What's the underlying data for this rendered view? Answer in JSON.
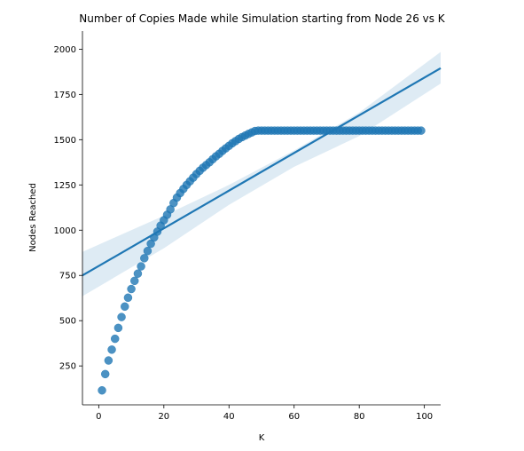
{
  "chart_data": {
    "type": "scatter",
    "title": "Number of Copies Made while Simulation starting from Node 26 vs K",
    "xlabel": "K",
    "ylabel": "Nodes Reached",
    "xlim": [
      -5,
      105
    ],
    "ylim": [
      35,
      2100
    ],
    "xticks": [
      0,
      20,
      40,
      60,
      80,
      100
    ],
    "yticks": [
      250,
      500,
      750,
      1000,
      1250,
      1500,
      1750,
      2000
    ],
    "grid": false,
    "color": "#1f77b4",
    "x": [
      1,
      2,
      3,
      4,
      5,
      6,
      7,
      8,
      9,
      10,
      11,
      12,
      13,
      14,
      15,
      16,
      17,
      18,
      19,
      20,
      21,
      22,
      23,
      24,
      25,
      26,
      27,
      28,
      29,
      30,
      31,
      32,
      33,
      34,
      35,
      36,
      37,
      38,
      39,
      40,
      41,
      42,
      43,
      44,
      45,
      46,
      47,
      48,
      49,
      50,
      51,
      52,
      53,
      54,
      55,
      56,
      57,
      58,
      59,
      60,
      61,
      62,
      63,
      64,
      65,
      66,
      67,
      68,
      69,
      70,
      71,
      72,
      73,
      74,
      75,
      76,
      77,
      78,
      79,
      80,
      81,
      82,
      83,
      84,
      85,
      86,
      87,
      88,
      89,
      90,
      91,
      92,
      93,
      94,
      95,
      96,
      97,
      98,
      99
    ],
    "y": [
      115,
      205,
      280,
      340,
      400,
      460,
      520,
      578,
      627,
      675,
      720,
      760,
      800,
      845,
      885,
      925,
      960,
      992,
      1025,
      1055,
      1085,
      1115,
      1150,
      1180,
      1205,
      1228,
      1250,
      1270,
      1290,
      1310,
      1328,
      1345,
      1360,
      1375,
      1392,
      1408,
      1422,
      1438,
      1452,
      1466,
      1480,
      1492,
      1504,
      1514,
      1523,
      1532,
      1540,
      1548,
      1550,
      1550,
      1550,
      1550,
      1550,
      1550,
      1550,
      1550,
      1550,
      1550,
      1550,
      1550,
      1550,
      1550,
      1550,
      1550,
      1550,
      1550,
      1550,
      1550,
      1550,
      1550,
      1550,
      1550,
      1550,
      1550,
      1550,
      1550,
      1550,
      1550,
      1550,
      1550,
      1550,
      1550,
      1550,
      1550,
      1550,
      1550,
      1550,
      1550,
      1550,
      1550,
      1550,
      1550,
      1550,
      1550,
      1550,
      1550,
      1550,
      1550,
      1550
    ],
    "regression": {
      "line": [
        [
          -5,
          750
        ],
        [
          105,
          1895
        ]
      ],
      "ci_upper": [
        [
          -5,
          880
        ],
        [
          20,
          1080
        ],
        [
          40,
          1250
        ],
        [
          60,
          1440
        ],
        [
          80,
          1650
        ],
        [
          105,
          1985
        ]
      ],
      "ci_lower": [
        [
          -5,
          635
        ],
        [
          20,
          900
        ],
        [
          40,
          1140
        ],
        [
          60,
          1350
        ],
        [
          80,
          1520
        ],
        [
          105,
          1810
        ]
      ]
    }
  }
}
